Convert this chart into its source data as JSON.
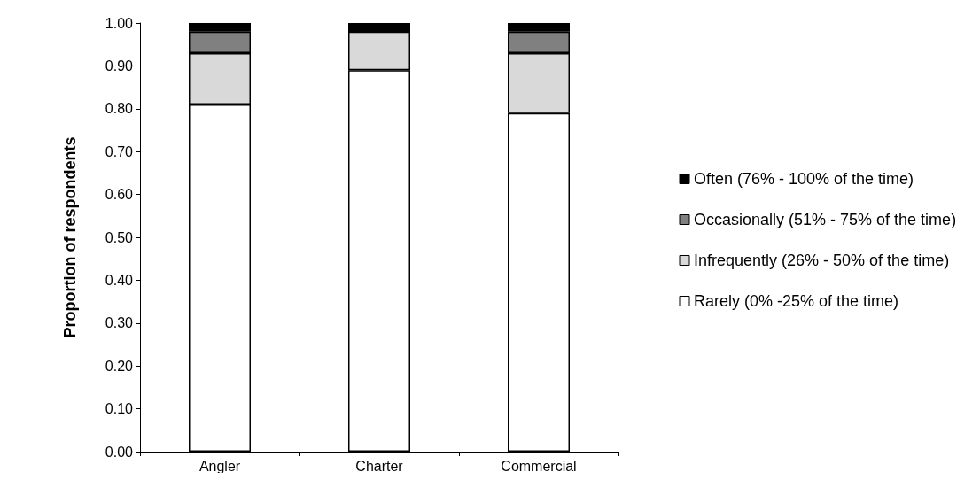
{
  "chart_data": {
    "type": "bar",
    "stacked": true,
    "ylabel": "Proportion of respondents",
    "categories": [
      "Angler",
      "Charter",
      "Commercial"
    ],
    "series": [
      {
        "name": "Rarely (0% -25% of the time)",
        "color": "#ffffff",
        "values": [
          0.81,
          0.89,
          0.79
        ]
      },
      {
        "name": "Infrequently (26% - 50% of the time)",
        "color": "#d9d9d9",
        "values": [
          0.12,
          0.09,
          0.14
        ]
      },
      {
        "name": "Occasionally (51% - 75% of the time)",
        "color": "#808080",
        "values": [
          0.05,
          0,
          0.05
        ]
      },
      {
        "name": "Often (76% - 100% of the time)",
        "color": "#000000",
        "values": [
          0.02,
          0.02,
          0.02
        ]
      }
    ],
    "ylim": [
      0,
      1
    ],
    "yticks": [
      {
        "value": 0,
        "label": "0.00"
      },
      {
        "value": 0.1,
        "label": "0.10"
      },
      {
        "value": 0.2,
        "label": "0.20"
      },
      {
        "value": 0.3,
        "label": "0.30"
      },
      {
        "value": 0.4,
        "label": "0.40"
      },
      {
        "value": 0.5,
        "label": "0.50"
      },
      {
        "value": 0.6,
        "label": "0.60"
      },
      {
        "value": 0.7,
        "label": "0.70"
      },
      {
        "value": 0.8,
        "label": "0.80"
      },
      {
        "value": 0.9,
        "label": "0.90"
      },
      {
        "value": 1,
        "label": "1.00"
      }
    ],
    "grid": false,
    "legend": "right"
  }
}
